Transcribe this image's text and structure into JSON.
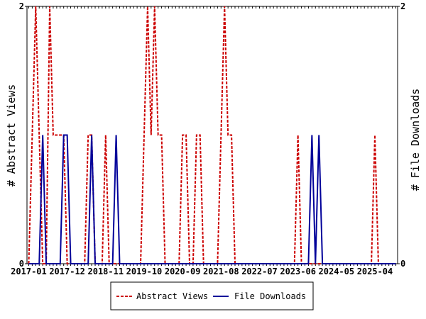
{
  "chart_data": {
    "type": "line",
    "title": "",
    "xlabel": "",
    "ylabel_left": "# Abstract Views",
    "ylabel_right": "# File Downloads",
    "x_start": "2017-01",
    "x_end": "2025-10",
    "ylim": [
      0,
      2
    ],
    "y_ticks": [
      "0",
      "2"
    ],
    "x_tick_labels": [
      "2017-01",
      "2017-12",
      "2018-11",
      "2019-10",
      "2020-09",
      "2021-08",
      "2022-07",
      "2023-06",
      "2024-05",
      "2025-04"
    ],
    "grid": false,
    "legend_position": "bottom-center",
    "series": [
      {
        "name": "Abstract Views",
        "color": "#cc0000",
        "style": "dashed",
        "points": [
          [
            "2017-02",
            1
          ],
          [
            "2017-03",
            2
          ],
          [
            "2017-04",
            1
          ],
          [
            "2017-07",
            2
          ],
          [
            "2017-08",
            1
          ],
          [
            "2017-09",
            1
          ],
          [
            "2017-10",
            1
          ],
          [
            "2017-11",
            1
          ],
          [
            "2018-06",
            1
          ],
          [
            "2018-07",
            1
          ],
          [
            "2018-11",
            1
          ],
          [
            "2019-10",
            1
          ],
          [
            "2019-11",
            2
          ],
          [
            "2019-12",
            1
          ],
          [
            "2020-01",
            2
          ],
          [
            "2020-02",
            1
          ],
          [
            "2020-03",
            1
          ],
          [
            "2020-09",
            1
          ],
          [
            "2020-10",
            1
          ],
          [
            "2021-01",
            1
          ],
          [
            "2021-02",
            1
          ],
          [
            "2021-08",
            1
          ],
          [
            "2021-09",
            2
          ],
          [
            "2021-10",
            1
          ],
          [
            "2021-11",
            1
          ],
          [
            "2023-06",
            1
          ],
          [
            "2025-04",
            1
          ]
        ]
      },
      {
        "name": "File Downloads",
        "color": "#000099",
        "style": "solid",
        "points": [
          [
            "2017-05",
            1
          ],
          [
            "2017-11",
            1
          ],
          [
            "2017-12",
            1
          ],
          [
            "2018-07",
            1
          ],
          [
            "2019-02",
            1
          ],
          [
            "2023-10",
            1
          ],
          [
            "2023-12",
            1
          ]
        ]
      }
    ]
  }
}
